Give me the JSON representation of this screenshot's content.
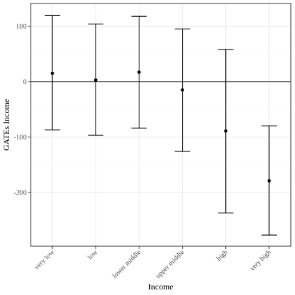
{
  "chart_data": {
    "type": "scatter",
    "title": "",
    "xlabel": "Income",
    "ylabel": "GATEs Income",
    "categories": [
      "very low",
      "low",
      "lower middle",
      "upper middle",
      "high",
      "very high"
    ],
    "estimates": [
      15,
      3,
      17,
      -15,
      -89,
      -179
    ],
    "lower": [
      -87,
      -97,
      -84,
      -126,
      -237,
      -277
    ],
    "upper": [
      119,
      104,
      118,
      95,
      58,
      -80
    ],
    "ylim": [
      -297,
      141
    ],
    "yticks": [
      -200,
      -100,
      0,
      100
    ],
    "reference_line": 0,
    "grid": true,
    "legend": "none"
  }
}
